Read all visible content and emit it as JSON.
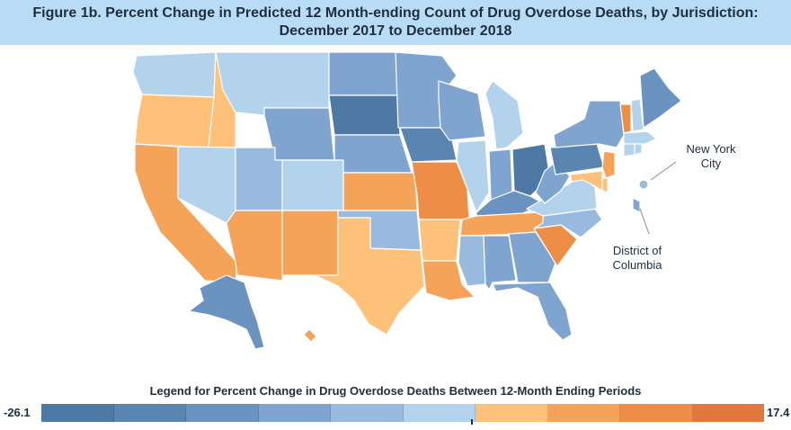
{
  "title": {
    "line1": "Figure 1b. Percent Change in Predicted 12 Month-ending Count of Drug Overdose Deaths, by Jurisdiction:",
    "line2": "December 2017 to December 2018"
  },
  "annotations": {
    "nyc": [
      "New York",
      "City"
    ],
    "dc": [
      "District of",
      "Columbia"
    ]
  },
  "legend": {
    "title": "Legend for Percent Change in Drug Overdose Deaths Between 12-Month Ending Periods",
    "min_label": "-26.1",
    "max_label": "17.4",
    "colors": [
      "#4e79a5",
      "#5a85b1",
      "#6a93c0",
      "#7ea4cf",
      "#98badf",
      "#b3d2eb",
      "#fdc17a",
      "#f5a358",
      "#ee8d45",
      "#e2783c"
    ]
  },
  "chart_data": {
    "type": "choropleth",
    "title": "Percent Change in Predicted 12 Month-ending Count of Drug Overdose Deaths, by Jurisdiction",
    "legend_range": [
      -26.1,
      17.4
    ],
    "legend_bins": 10,
    "jurisdiction_bins": {
      "WA": 5,
      "OR": 6,
      "CA": 7,
      "ID": 6,
      "NV": 5,
      "MT": 5,
      "WY": 3,
      "UT": 4,
      "AZ": 7,
      "CO": 5,
      "NM": 7,
      "ND": 3,
      "SD": 0,
      "NE": 3,
      "KS": 7,
      "OK": 4,
      "TX": 6,
      "MN": 3,
      "IA": 1,
      "MO": 8,
      "AR": 6,
      "LA": 7,
      "WI": 3,
      "IL": 5,
      "MI": 5,
      "IN": 3,
      "OH": 0,
      "KY": 2,
      "TN": 7,
      "MS": 4,
      "AL": 3,
      "GA": 3,
      "FL": 3,
      "SC": 8,
      "NC": 4,
      "VA": 5,
      "WV": 3,
      "PA": 1,
      "NY": 3,
      "NJ": 7,
      "DE": 6,
      "MD": 6,
      "VT": 8,
      "NH": 5,
      "ME": 2,
      "MA": 5,
      "CT": 5,
      "RI": 5,
      "AK": 2,
      "HI": 7,
      "NYC": 4,
      "DC": 3
    }
  }
}
